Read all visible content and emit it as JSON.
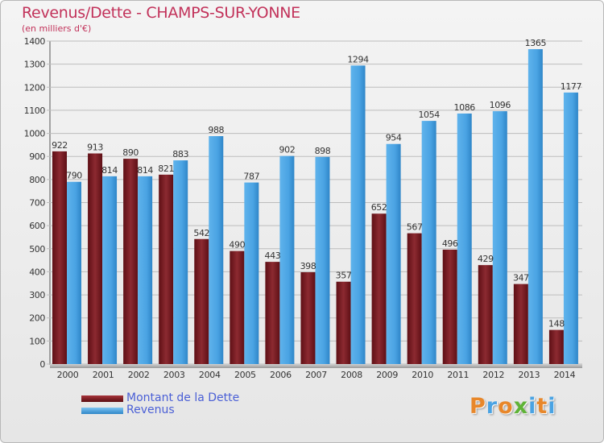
{
  "header": {
    "title": "Revenus/Dette - CHAMPS-SUR-YONNE",
    "subtitle": "(en milliers d'€)"
  },
  "chart_data": {
    "type": "bar",
    "title": "Revenus/Dette - CHAMPS-SUR-YONNE",
    "subtitle": "(en milliers d'€)",
    "xlabel": "",
    "ylabel": "",
    "ylim": [
      0,
      1400
    ],
    "yticks": [
      0,
      100,
      200,
      300,
      400,
      500,
      600,
      700,
      800,
      900,
      1000,
      1100,
      1200,
      1300,
      1400
    ],
    "grid": true,
    "legend_position": "bottom-left",
    "categories": [
      "2000",
      "2001",
      "2002",
      "2003",
      "2004",
      "2005",
      "2006",
      "2007",
      "2008",
      "2009",
      "2010",
      "2011",
      "2012",
      "2013",
      "2014"
    ],
    "series": [
      {
        "name": "Montant de la Dette",
        "color": "#7a1c22",
        "values": [
          922,
          913,
          890,
          821,
          542,
          490,
          443,
          398,
          357,
          652,
          567,
          496,
          429,
          347,
          148
        ]
      },
      {
        "name": "Revenus",
        "color": "#4aa3e3",
        "values": [
          790,
          814,
          814,
          883,
          988,
          787,
          902,
          898,
          1294,
          954,
          1054,
          1086,
          1096,
          1365,
          1177
        ]
      }
    ]
  },
  "legend": {
    "items": [
      {
        "label": "Montant de la Dette",
        "color": "#7a1c22"
      },
      {
        "label": "Revenus",
        "color": "#4aa3e3"
      }
    ]
  },
  "logo": {
    "text": "Proxiti",
    "letters": [
      "P",
      "r",
      "o",
      "x",
      "i",
      "t",
      "i"
    ],
    "colors": [
      "#e8872a",
      "#4aa3e3",
      "#e8872a",
      "#5fb337",
      "#4aa3e3",
      "#e8872a",
      "#4aa3e3"
    ]
  }
}
